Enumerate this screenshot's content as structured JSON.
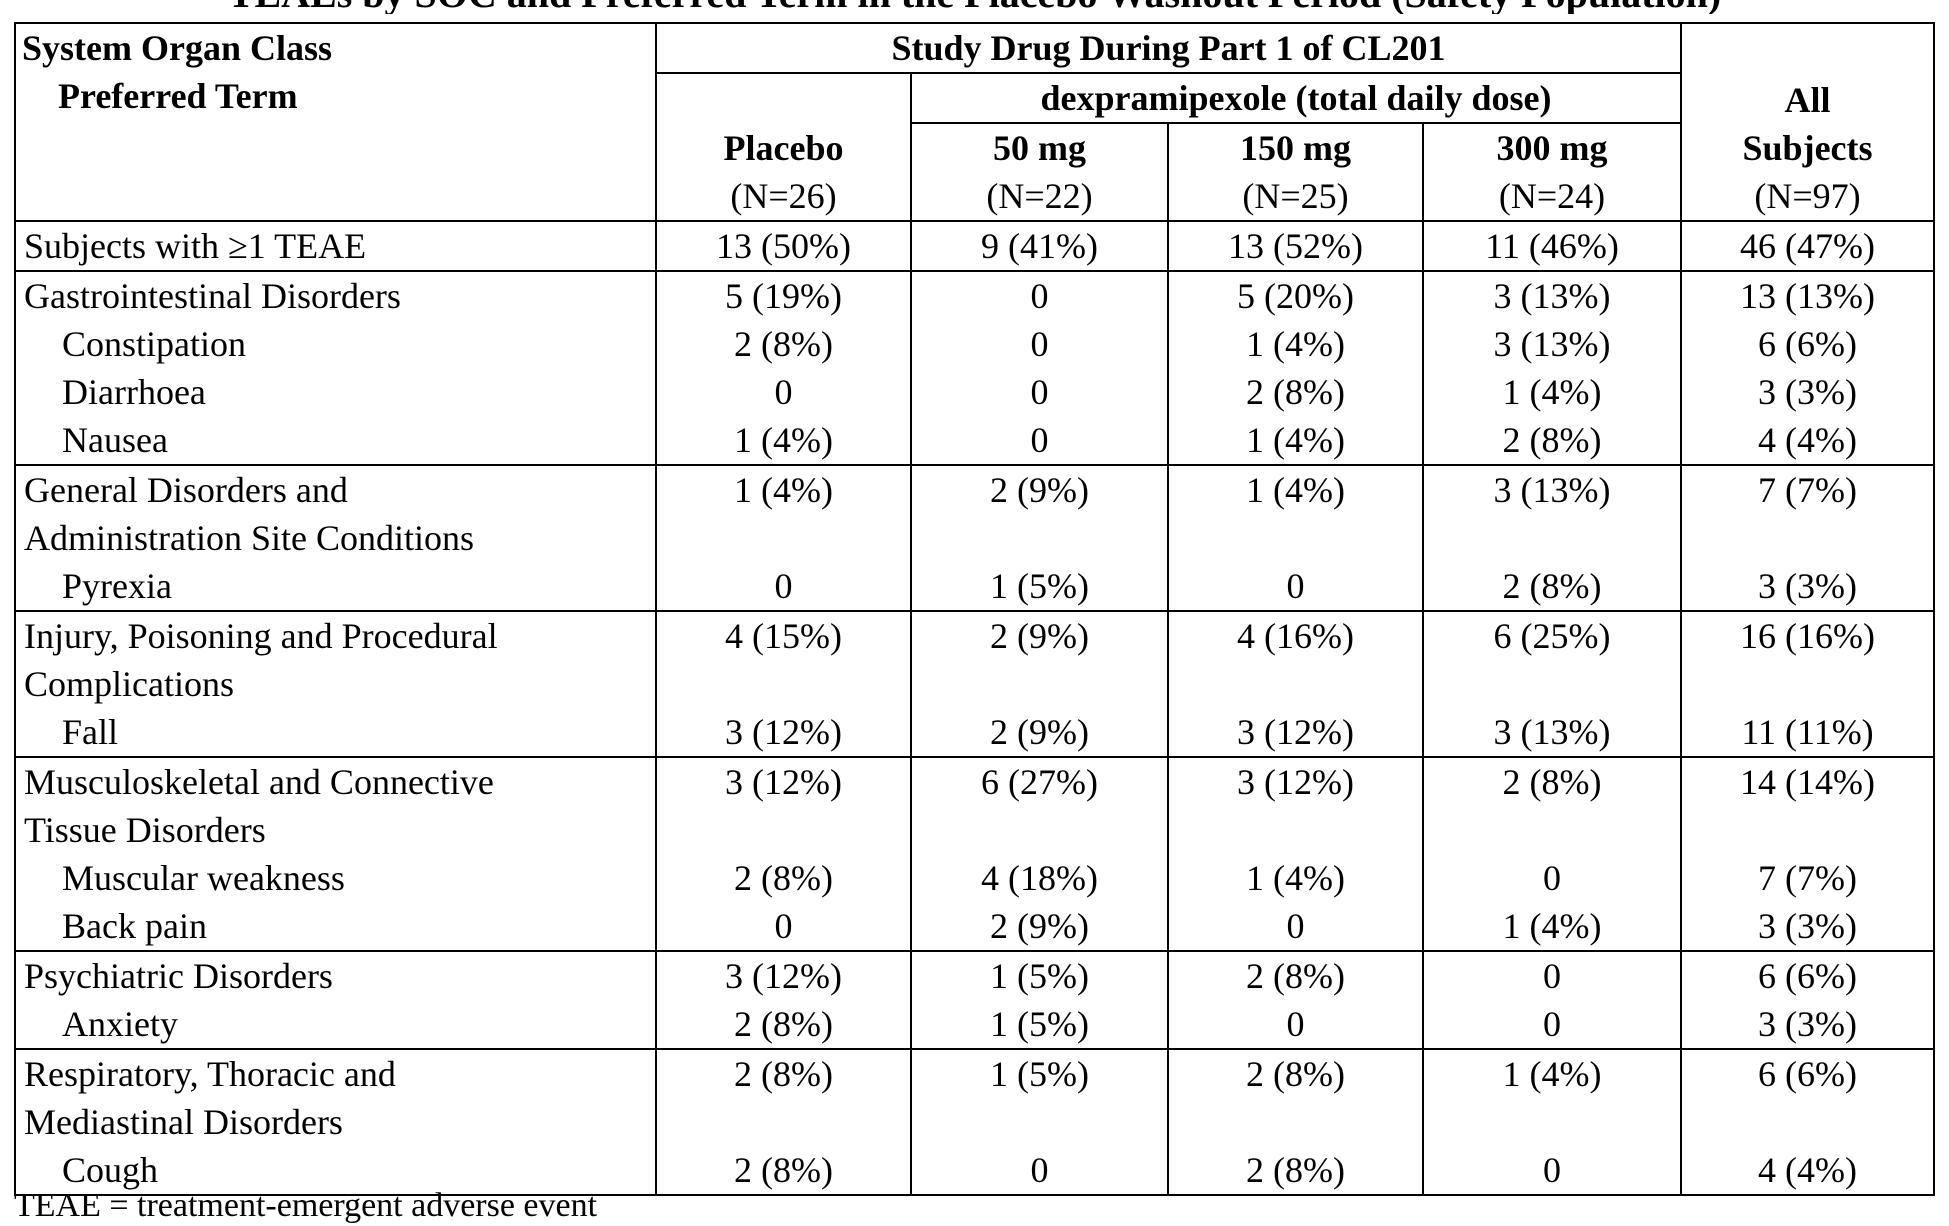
{
  "title": "TEAEs by SOC and Preferred Term in the Placebo Washout Period (Safety Population)",
  "header": {
    "soc_label": "System Organ Class",
    "pt_label": "Preferred Term",
    "study_drug": "Study Drug During Part 1 of CL201",
    "dex_label": "dexpramipexole (total daily dose)",
    "placebo": "Placebo",
    "placebo_n": "(N=26)",
    "dose50": "50 mg",
    "dose50_n": "(N=22)",
    "dose150": "150 mg",
    "dose150_n": "(N=25)",
    "dose300": "300 mg",
    "dose300_n": "(N=24)",
    "all1": "All",
    "all2": "Subjects",
    "all_n": "(N=97)"
  },
  "rows": {
    "teae": {
      "label": "Subjects with ≥1 TEAE",
      "v": [
        "13 (50%)",
        "9 (41%)",
        "13 (52%)",
        "11 (46%)",
        "46 (47%)"
      ]
    },
    "gi": {
      "label": "Gastrointestinal Disorders",
      "v": [
        "5 (19%)",
        "0",
        "5 (20%)",
        "3 (13%)",
        "13 (13%)"
      ]
    },
    "constipation": {
      "label": "Constipation",
      "v": [
        "2 (8%)",
        "0",
        "1 (4%)",
        "3 (13%)",
        "6 (6%)"
      ]
    },
    "diarrhoea": {
      "label": "Diarrhoea",
      "v": [
        "0",
        "0",
        "2 (8%)",
        "1 (4%)",
        "3 (3%)"
      ]
    },
    "nausea": {
      "label": "Nausea",
      "v": [
        "1 (4%)",
        "0",
        "1 (4%)",
        "2 (8%)",
        "4 (4%)"
      ]
    },
    "general": {
      "label1": "General Disorders and",
      "label2": "Administration Site Conditions",
      "v": [
        "1 (4%)",
        "2 (9%)",
        "1 (4%)",
        "3 (13%)",
        "7 (7%)"
      ]
    },
    "pyrexia": {
      "label": "Pyrexia",
      "v": [
        "0",
        "1 (5%)",
        "0",
        "2 (8%)",
        "3 (3%)"
      ]
    },
    "injury": {
      "label1": "Injury, Poisoning and Procedural",
      "label2": "Complications",
      "v": [
        "4 (15%)",
        "2 (9%)",
        "4 (16%)",
        "6 (25%)",
        "16 (16%)"
      ]
    },
    "fall": {
      "label": "Fall",
      "v": [
        "3 (12%)",
        "2 (9%)",
        "3 (12%)",
        "3 (13%)",
        "11 (11%)"
      ]
    },
    "musculo": {
      "label1": "Musculoskeletal and Connective",
      "label2": "Tissue Disorders",
      "v": [
        "3 (12%)",
        "6 (27%)",
        "3 (12%)",
        "2 (8%)",
        "14 (14%)"
      ]
    },
    "weakness": {
      "label": "Muscular weakness",
      "v": [
        "2 (8%)",
        "4 (18%)",
        "1 (4%)",
        "0",
        "7 (7%)"
      ]
    },
    "backpain": {
      "label": "Back pain",
      "v": [
        "0",
        "2 (9%)",
        "0",
        "1 (4%)",
        "3 (3%)"
      ]
    },
    "psych": {
      "label": "Psychiatric Disorders",
      "v": [
        "3 (12%)",
        "1 (5%)",
        "2 (8%)",
        "0",
        "6 (6%)"
      ]
    },
    "anxiety": {
      "label": "Anxiety",
      "v": [
        "2 (8%)",
        "1 (5%)",
        "0",
        "0",
        "3 (3%)"
      ]
    },
    "resp": {
      "label1": "Respiratory, Thoracic and",
      "label2": "Mediastinal Disorders",
      "v": [
        "2 (8%)",
        "1 (5%)",
        "2 (8%)",
        "1 (4%)",
        "6 (6%)"
      ]
    },
    "cough": {
      "label": "Cough",
      "v": [
        "2 (8%)",
        "0",
        "2 (8%)",
        "0",
        "4 (4%)"
      ]
    }
  },
  "footnote": "TEAE = treatment-emergent adverse event"
}
